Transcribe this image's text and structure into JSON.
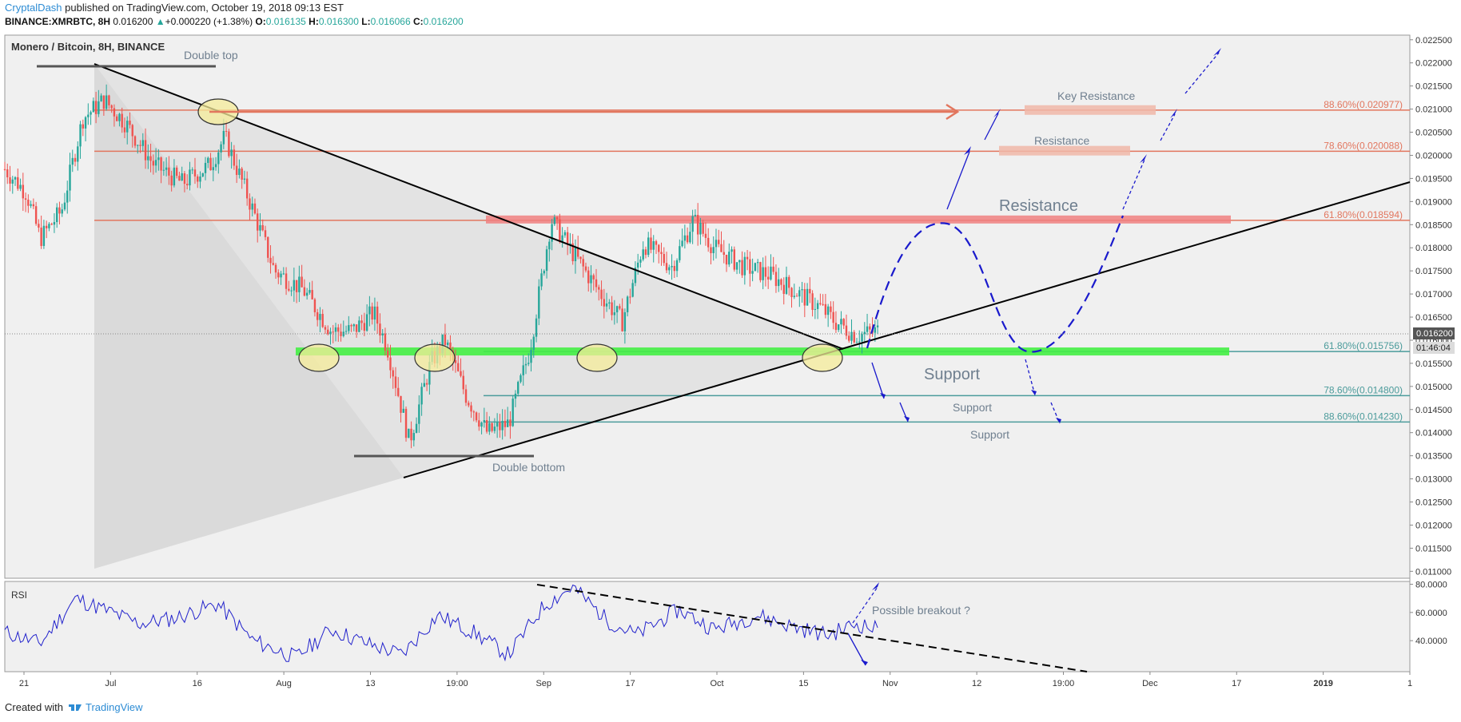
{
  "header": {
    "author": "CryptalDash",
    "published": "published on TradingView.com, October 19, 2018 09:13 EST"
  },
  "ticker": {
    "symbol": "BINANCE:XMRBTC, 8H",
    "last": "0.016200",
    "arrow": "▲",
    "change": "+0.000220 (+1.38%)",
    "o_label": "O:",
    "o": "0.016135",
    "h_label": "H:",
    "h": "0.016300",
    "l_label": "L:",
    "l": "0.016066",
    "c_label": "C:",
    "c": "0.016200"
  },
  "footer": {
    "created_with": "Created with",
    "brand": "TradingView"
  },
  "colors": {
    "up": "#26a69a",
    "down": "#ef5350",
    "support_band": "#44ee44",
    "resistance_band": "#f08080",
    "fib_red": "#e2765e",
    "fib_teal": "#4b9b9b",
    "projection": "#1a1acc",
    "rsi_line": "#2222cc"
  },
  "chart_data": [
    {
      "type": "candlestick",
      "title": "Monero / Bitcoin, 8H, BINANCE",
      "y_ticks": [
        "0.022500",
        "0.022000",
        "0.021500",
        "0.021000",
        "0.020500",
        "0.020000",
        "0.019500",
        "0.019000",
        "0.018500",
        "0.018000",
        "0.017500",
        "0.017000",
        "0.016500",
        "0.016000",
        "0.015500",
        "0.015000",
        "0.014500",
        "0.014000",
        "0.013500",
        "0.013000",
        "0.012500",
        "0.012000",
        "0.011500",
        "0.011000"
      ],
      "ylim": [
        0.01085,
        0.0226
      ],
      "x_ticks": [
        "21",
        "Jul",
        "16",
        "Aug",
        "13",
        "19:00",
        "Sep",
        "17",
        "Oct",
        "15",
        "Nov",
        "12",
        "19:00",
        "Dec",
        "17",
        "2019",
        "1"
      ],
      "x_range": [
        "2018-06-17",
        "2019-01-01"
      ],
      "price_path": {
        "dates": [
          "2018-06-17",
          "2018-06-20",
          "2018-06-22",
          "2018-06-25",
          "2018-06-28",
          "2018-07-01",
          "2018-07-04",
          "2018-07-08",
          "2018-07-12",
          "2018-07-16",
          "2018-07-18",
          "2018-07-22",
          "2018-07-25",
          "2018-07-29",
          "2018-08-02",
          "2018-08-05",
          "2018-08-08",
          "2018-08-10",
          "2018-08-13",
          "2018-08-16",
          "2018-08-18",
          "2018-08-21",
          "2018-08-24",
          "2018-08-27",
          "2018-08-30",
          "2018-09-02",
          "2018-09-05",
          "2018-09-09",
          "2018-09-12",
          "2018-09-15",
          "2018-09-19",
          "2018-09-22",
          "2018-09-25",
          "2018-09-29",
          "2018-10-03",
          "2018-10-07",
          "2018-10-10",
          "2018-10-12",
          "2018-10-15",
          "2018-10-18"
        ],
        "close": [
          0.0197,
          0.0192,
          0.0182,
          0.0188,
          0.0208,
          0.0212,
          0.0207,
          0.0198,
          0.0194,
          0.0198,
          0.0204,
          0.0188,
          0.0175,
          0.0171,
          0.0162,
          0.0162,
          0.0166,
          0.0158,
          0.0138,
          0.0155,
          0.016,
          0.0148,
          0.014,
          0.0142,
          0.0158,
          0.0186,
          0.0179,
          0.017,
          0.0164,
          0.0181,
          0.0176,
          0.0186,
          0.018,
          0.0176,
          0.0174,
          0.017,
          0.0167,
          0.0164,
          0.0161,
          0.0162
        ]
      },
      "last_price": "0.016200",
      "countdown": "01:46:04",
      "fib_levels": [
        {
          "label": "88.60%(0.020977)",
          "value": 0.020977
        },
        {
          "label": "78.60%(0.020088)",
          "value": 0.020088
        },
        {
          "label": "61.80%(0.018594)",
          "value": 0.018594
        },
        {
          "label": "61.80%(0.015756)",
          "value": 0.015756
        },
        {
          "label": "78.60%(0.014800)",
          "value": 0.0148
        },
        {
          "label": "88.60%(0.014230)",
          "value": 0.01423
        }
      ],
      "annotations": [
        "Double top",
        "Double bottom",
        "Key Resistance",
        "Resistance",
        "Resistance",
        "Support",
        "Support",
        "Support"
      ]
    },
    {
      "type": "line",
      "title": "RSI",
      "y_ticks": [
        "80.0000",
        "60.0000",
        "40.0000"
      ],
      "ylim": [
        18,
        82
      ],
      "rsi_path": {
        "dates": [
          "2018-06-17",
          "2018-06-22",
          "2018-06-27",
          "2018-07-01",
          "2018-07-06",
          "2018-07-11",
          "2018-07-17",
          "2018-07-22",
          "2018-07-28",
          "2018-08-02",
          "2018-08-07",
          "2018-08-12",
          "2018-08-17",
          "2018-08-22",
          "2018-08-27",
          "2018-09-01",
          "2018-09-05",
          "2018-09-10",
          "2018-09-14",
          "2018-09-20",
          "2018-09-25",
          "2018-10-01",
          "2018-10-06",
          "2018-10-11",
          "2018-10-15",
          "2018-10-18"
        ],
        "values": [
          46,
          38,
          70,
          62,
          52,
          56,
          66,
          40,
          28,
          48,
          38,
          30,
          58,
          46,
          30,
          65,
          78,
          54,
          44,
          62,
          48,
          58,
          50,
          44,
          52,
          48
        ]
      },
      "annotations": [
        "Possible breakout ?"
      ]
    }
  ]
}
